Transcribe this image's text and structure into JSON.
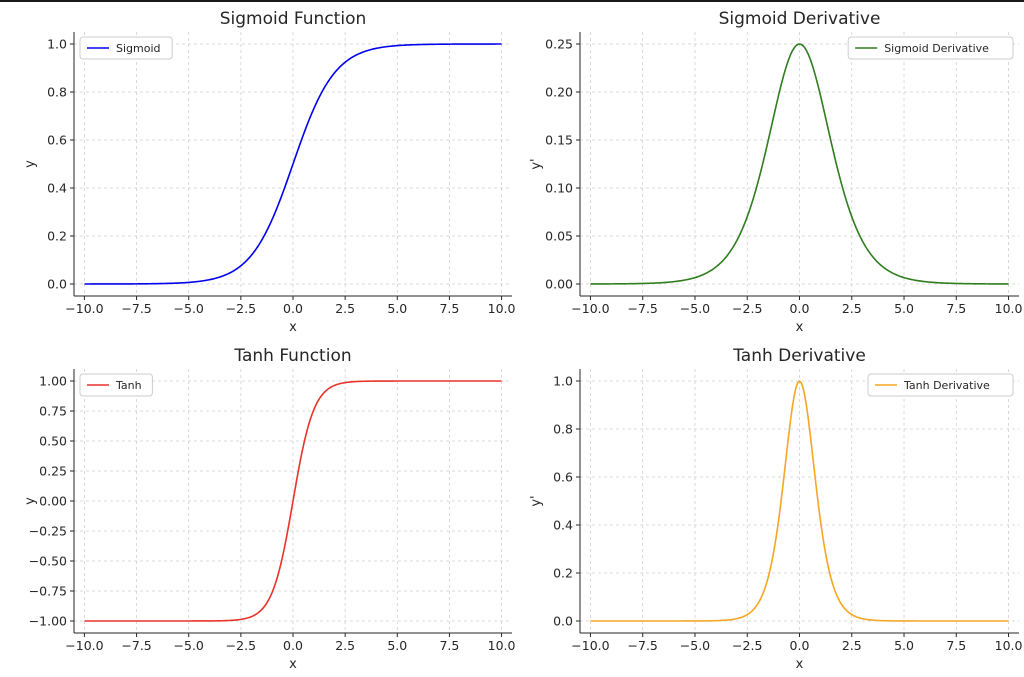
{
  "chart_data": [
    {
      "type": "line",
      "func": "sigmoid",
      "title": "Sigmoid Function",
      "xlabel": "x",
      "ylabel": "y",
      "xlim": [
        -10.5,
        10.5
      ],
      "ylim": [
        -0.05,
        1.05
      ],
      "xticks": [
        -10.0,
        -7.5,
        -5.0,
        -2.5,
        0.0,
        2.5,
        5.0,
        7.5,
        10.0
      ],
      "xtick_labels": [
        "−10.0",
        "−7.5",
        "−5.0",
        "−2.5",
        "0.0",
        "2.5",
        "5.0",
        "7.5",
        "10.0"
      ],
      "yticks": [
        0.0,
        0.2,
        0.4,
        0.6,
        0.8,
        1.0
      ],
      "ytick_labels": [
        "0.0",
        "0.2",
        "0.4",
        "0.6",
        "0.8",
        "1.0"
      ],
      "grid": true,
      "legend_position": "top-left",
      "series": [
        {
          "name": "Sigmoid",
          "color": "#0000ee",
          "x": [
            -10.0,
            -8.0,
            -6.0,
            -5.0,
            -4.0,
            -3.5,
            -3.0,
            -2.5,
            -2.0,
            -1.5,
            -1.0,
            -0.5,
            0.0,
            0.5,
            1.0,
            1.5,
            2.0,
            2.5,
            3.0,
            3.5,
            4.0,
            5.0,
            6.0,
            8.0,
            10.0
          ],
          "y": [
            4.54e-05,
            0.000335,
            0.00247,
            0.00669,
            0.018,
            0.0293,
            0.0474,
            0.0759,
            0.1192,
            0.1824,
            0.2689,
            0.3775,
            0.5,
            0.6225,
            0.7311,
            0.8176,
            0.8808,
            0.9241,
            0.9526,
            0.9707,
            0.982,
            0.9933,
            0.9975,
            0.99966,
            0.99995
          ]
        }
      ]
    },
    {
      "type": "line",
      "func": "sigmoid_derivative",
      "title": "Sigmoid Derivative",
      "xlabel": "x",
      "ylabel": "y'",
      "xlim": [
        -10.5,
        10.5
      ],
      "ylim": [
        -0.0125,
        0.2625
      ],
      "xticks": [
        -10.0,
        -7.5,
        -5.0,
        -2.5,
        0.0,
        2.5,
        5.0,
        7.5,
        10.0
      ],
      "xtick_labels": [
        "−10.0",
        "−7.5",
        "−5.0",
        "−2.5",
        "0.0",
        "2.5",
        "5.0",
        "7.5",
        "10.0"
      ],
      "yticks": [
        0.0,
        0.05,
        0.1,
        0.15,
        0.2,
        0.25
      ],
      "ytick_labels": [
        "0.00",
        "0.05",
        "0.10",
        "0.15",
        "0.20",
        "0.25"
      ],
      "grid": true,
      "legend_position": "top-right",
      "series": [
        {
          "name": "Sigmoid Derivative",
          "color": "#2e7d1e",
          "x": [
            -10.0,
            -8.0,
            -6.0,
            -5.0,
            -4.0,
            -3.5,
            -3.0,
            -2.5,
            -2.0,
            -1.5,
            -1.0,
            -0.5,
            0.0,
            0.5,
            1.0,
            1.5,
            2.0,
            2.5,
            3.0,
            3.5,
            4.0,
            5.0,
            6.0,
            8.0,
            10.0
          ],
          "y": [
            4.54e-05,
            0.000335,
            0.00247,
            0.00665,
            0.0177,
            0.0285,
            0.0452,
            0.0701,
            0.105,
            0.1491,
            0.1966,
            0.235,
            0.25,
            0.235,
            0.1966,
            0.1491,
            0.105,
            0.0701,
            0.0452,
            0.0285,
            0.0177,
            0.00665,
            0.00247,
            0.000335,
            4.54e-05
          ]
        }
      ]
    },
    {
      "type": "line",
      "func": "tanh",
      "title": "Tanh Function",
      "xlabel": "x",
      "ylabel": "y",
      "xlim": [
        -10.5,
        10.5
      ],
      "ylim": [
        -1.1,
        1.1
      ],
      "xticks": [
        -10.0,
        -7.5,
        -5.0,
        -2.5,
        0.0,
        2.5,
        5.0,
        7.5,
        10.0
      ],
      "xtick_labels": [
        "−10.0",
        "−7.5",
        "−5.0",
        "−2.5",
        "0.0",
        "2.5",
        "5.0",
        "7.5",
        "10.0"
      ],
      "yticks": [
        -1.0,
        -0.75,
        -0.5,
        -0.25,
        0.0,
        0.25,
        0.5,
        0.75,
        1.0
      ],
      "ytick_labels": [
        "−1.00",
        "−0.75",
        "−0.50",
        "−0.25",
        "0.00",
        "0.25",
        "0.50",
        "0.75",
        "1.00"
      ],
      "grid": true,
      "legend_position": "top-left",
      "series": [
        {
          "name": "Tanh",
          "color": "#e8332a",
          "x": [
            -10.0,
            -6.0,
            -4.0,
            -3.0,
            -2.5,
            -2.0,
            -1.5,
            -1.0,
            -0.75,
            -0.5,
            -0.25,
            0.0,
            0.25,
            0.5,
            0.75,
            1.0,
            1.5,
            2.0,
            2.5,
            3.0,
            4.0,
            6.0,
            10.0
          ],
          "y": [
            -1.0,
            -0.99999,
            -0.99933,
            -0.99505,
            -0.98661,
            -0.96403,
            -0.90515,
            -0.76159,
            -0.63515,
            -0.46212,
            -0.24492,
            0.0,
            0.24492,
            0.46212,
            0.63515,
            0.76159,
            0.90515,
            0.96403,
            0.98661,
            0.99505,
            0.99933,
            0.99999,
            1.0
          ]
        }
      ]
    },
    {
      "type": "line",
      "func": "tanh_derivative",
      "title": "Tanh Derivative",
      "xlabel": "x",
      "ylabel": "y'",
      "xlim": [
        -10.5,
        10.5
      ],
      "ylim": [
        -0.05,
        1.05
      ],
      "xticks": [
        -10.0,
        -7.5,
        -5.0,
        -2.5,
        0.0,
        2.5,
        5.0,
        7.5,
        10.0
      ],
      "xtick_labels": [
        "−10.0",
        "−7.5",
        "−5.0",
        "−2.5",
        "0.0",
        "2.5",
        "5.0",
        "7.5",
        "10.0"
      ],
      "yticks": [
        0.0,
        0.2,
        0.4,
        0.6,
        0.8,
        1.0
      ],
      "ytick_labels": [
        "0.0",
        "0.2",
        "0.4",
        "0.6",
        "0.8",
        "1.0"
      ],
      "grid": true,
      "legend_position": "top-right",
      "series": [
        {
          "name": "Tanh Derivative",
          "color": "#f5a623",
          "x": [
            -10.0,
            -6.0,
            -4.0,
            -3.0,
            -2.5,
            -2.0,
            -1.5,
            -1.0,
            -0.75,
            -0.5,
            -0.25,
            0.0,
            0.25,
            0.5,
            0.75,
            1.0,
            1.5,
            2.0,
            2.5,
            3.0,
            4.0,
            6.0,
            10.0
          ],
          "y": [
            0.0,
            2.46e-05,
            0.00134,
            0.00987,
            0.0266,
            0.0707,
            0.1807,
            0.42,
            0.5966,
            0.7864,
            0.94,
            1.0,
            0.94,
            0.7864,
            0.5966,
            0.42,
            0.1807,
            0.0707,
            0.0266,
            0.00987,
            0.00134,
            2.46e-05,
            0.0
          ]
        }
      ]
    }
  ]
}
